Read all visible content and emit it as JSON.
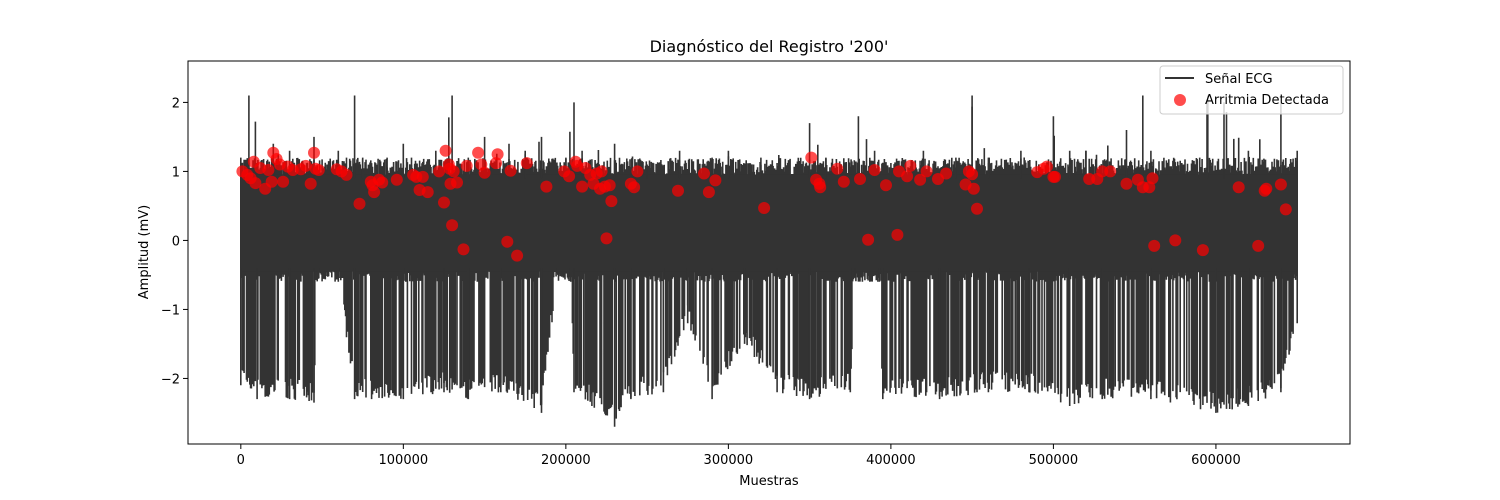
{
  "chart_data": {
    "type": "line",
    "title": "Diagnóstico del Registro '200'",
    "xlabel": "Muestras",
    "ylabel": "Amplitud (mV)",
    "xlim": [
      -32500,
      682500
    ],
    "ylim": [
      -2.95,
      2.6
    ],
    "xticks": [
      0,
      100000,
      200000,
      300000,
      400000,
      500000,
      600000
    ],
    "xtick_labels": [
      "0",
      "100000",
      "200000",
      "300000",
      "400000",
      "500000",
      "600000"
    ],
    "yticks": [
      2,
      1,
      0,
      -1,
      -2
    ],
    "ytick_labels": [
      "2",
      "1",
      "0",
      "−1",
      "−2"
    ],
    "grid": false,
    "legend_position": "upper right",
    "series": [
      {
        "name": "Señal ECG",
        "type": "line",
        "color": "#333333",
        "x_range": [
          0,
          650000
        ],
        "description": "Dense ECG signal; upper envelope mostly ~1.0–1.3 mV with spikes to ~2.4 mV; lower envelope ~-0.5 mV baseline with deep negative deflections to about -2.3 mV, minimum ~-2.7 mV near 230000",
        "upper_envelope": [
          [
            0,
            1.2
          ],
          [
            5000,
            2.1
          ],
          [
            20000,
            1.4
          ],
          [
            30000,
            1.3
          ],
          [
            45000,
            1.5
          ],
          [
            60000,
            1.3
          ],
          [
            70000,
            2.1
          ],
          [
            75000,
            1.2
          ],
          [
            90000,
            1.2
          ],
          [
            100000,
            1.4
          ],
          [
            105000,
            1.2
          ],
          [
            120000,
            1.3
          ],
          [
            130000,
            2.1
          ],
          [
            140000,
            1.2
          ],
          [
            150000,
            1.5
          ],
          [
            165000,
            1.4
          ],
          [
            175000,
            1.3
          ],
          [
            185000,
            1.5
          ],
          [
            200000,
            1.2
          ],
          [
            205000,
            2.0
          ],
          [
            210000,
            1.3
          ],
          [
            230000,
            1.4
          ],
          [
            250000,
            1.1
          ],
          [
            270000,
            1.3
          ],
          [
            290000,
            1.2
          ],
          [
            300000,
            1.3
          ],
          [
            320000,
            1.2
          ],
          [
            350000,
            1.7
          ],
          [
            360000,
            1.2
          ],
          [
            380000,
            1.8
          ],
          [
            390000,
            1.3
          ],
          [
            400000,
            1.0
          ],
          [
            420000,
            1.3
          ],
          [
            440000,
            1.2
          ],
          [
            450000,
            2.1
          ],
          [
            460000,
            1.2
          ],
          [
            480000,
            1.3
          ],
          [
            500000,
            1.8
          ],
          [
            510000,
            1.3
          ],
          [
            520000,
            1.3
          ],
          [
            545000,
            1.6
          ],
          [
            555000,
            2.1
          ],
          [
            560000,
            1.3
          ],
          [
            590000,
            1.2
          ],
          [
            595000,
            2.1
          ],
          [
            605000,
            2.0
          ],
          [
            620000,
            1.3
          ],
          [
            640000,
            2.0
          ],
          [
            650000,
            1.3
          ]
        ],
        "lower_envelope": [
          [
            0,
            -2.1
          ],
          [
            10000,
            -2.3
          ],
          [
            30000,
            -2.3
          ],
          [
            45000,
            -2.35
          ],
          [
            48000,
            -0.55
          ],
          [
            60000,
            -0.6
          ],
          [
            70000,
            -2.3
          ],
          [
            100000,
            -2.3
          ],
          [
            125000,
            -2.2
          ],
          [
            140000,
            -2.3
          ],
          [
            160000,
            -2.2
          ],
          [
            185000,
            -2.5
          ],
          [
            195000,
            -0.5
          ],
          [
            203000,
            -0.6
          ],
          [
            205000,
            -2.2
          ],
          [
            230000,
            -2.7
          ],
          [
            240000,
            -2.3
          ],
          [
            260000,
            -2.2
          ],
          [
            275000,
            -1.2
          ],
          [
            290000,
            -2.3
          ],
          [
            310000,
            -1.5
          ],
          [
            330000,
            -2.2
          ],
          [
            350000,
            -2.3
          ],
          [
            375000,
            -2.2
          ],
          [
            378000,
            -0.5
          ],
          [
            393000,
            -0.6
          ],
          [
            395000,
            -2.3
          ],
          [
            430000,
            -2.3
          ],
          [
            460000,
            -2.2
          ],
          [
            485000,
            -2.2
          ],
          [
            510000,
            -2.4
          ],
          [
            530000,
            -2.3
          ],
          [
            560000,
            -2.3
          ],
          [
            600000,
            -2.5
          ],
          [
            620000,
            -2.4
          ],
          [
            640000,
            -2.2
          ],
          [
            650000,
            -1.2
          ]
        ]
      },
      {
        "name": "Arritmia Detectada",
        "type": "scatter",
        "color": "#ff0000",
        "alpha": 0.7,
        "points": [
          [
            1000,
            1.0
          ],
          [
            4000,
            0.95
          ],
          [
            6000,
            0.9
          ],
          [
            8000,
            1.14
          ],
          [
            9000,
            0.83
          ],
          [
            12000,
            1.05
          ],
          [
            15000,
            0.75
          ],
          [
            17000,
            1.02
          ],
          [
            19000,
            0.85
          ],
          [
            20000,
            1.27
          ],
          [
            22000,
            1.18
          ],
          [
            24000,
            1.1
          ],
          [
            26000,
            0.85
          ],
          [
            29000,
            1.07
          ],
          [
            32000,
            1.02
          ],
          [
            37000,
            1.03
          ],
          [
            40000,
            1.08
          ],
          [
            43000,
            0.82
          ],
          [
            45000,
            1.27
          ],
          [
            46000,
            1.04
          ],
          [
            48000,
            1.02
          ],
          [
            59000,
            1.03
          ],
          [
            62000,
            1.0
          ],
          [
            65000,
            0.95
          ],
          [
            73000,
            0.53
          ],
          [
            80000,
            0.85
          ],
          [
            81000,
            0.8
          ],
          [
            82000,
            0.7
          ],
          [
            85000,
            0.88
          ],
          [
            87000,
            0.84
          ],
          [
            96000,
            0.88
          ],
          [
            106000,
            0.95
          ],
          [
            108000,
            0.92
          ],
          [
            110000,
            0.73
          ],
          [
            112000,
            0.92
          ],
          [
            115000,
            0.7
          ],
          [
            122000,
            1.0
          ],
          [
            125000,
            0.55
          ],
          [
            126000,
            1.3
          ],
          [
            128000,
            1.1
          ],
          [
            128500,
            1.04
          ],
          [
            129000,
            0.82
          ],
          [
            130000,
            0.22
          ],
          [
            131000,
            1.0
          ],
          [
            133000,
            0.84
          ],
          [
            137000,
            -0.13
          ],
          [
            139000,
            1.08
          ],
          [
            146000,
            1.27
          ],
          [
            148000,
            1.1
          ],
          [
            150000,
            0.98
          ],
          [
            157000,
            1.12
          ],
          [
            158000,
            1.25
          ],
          [
            164000,
            -0.02
          ],
          [
            166000,
            1.01
          ],
          [
            170000,
            -0.22
          ],
          [
            176000,
            1.12
          ],
          [
            188000,
            0.78
          ],
          [
            199000,
            1.0
          ],
          [
            202000,
            0.93
          ],
          [
            206000,
            1.14
          ],
          [
            207000,
            1.08
          ],
          [
            210000,
            0.78
          ],
          [
            212000,
            1.05
          ],
          [
            215000,
            0.95
          ],
          [
            217000,
            0.82
          ],
          [
            219000,
            0.97
          ],
          [
            221000,
            0.75
          ],
          [
            222000,
            1.0
          ],
          [
            224000,
            0.78
          ],
          [
            225000,
            0.03
          ],
          [
            227000,
            0.8
          ],
          [
            228000,
            0.57
          ],
          [
            240000,
            0.82
          ],
          [
            242000,
            0.77
          ],
          [
            244000,
            1.0
          ],
          [
            269000,
            0.72
          ],
          [
            285000,
            0.97
          ],
          [
            288000,
            0.7
          ],
          [
            292000,
            0.87
          ],
          [
            322000,
            0.47
          ],
          [
            351000,
            1.2
          ],
          [
            354000,
            0.88
          ],
          [
            356000,
            0.82
          ],
          [
            356500,
            0.77
          ],
          [
            367000,
            1.04
          ],
          [
            371000,
            0.85
          ],
          [
            381000,
            0.89
          ],
          [
            386000,
            0.01
          ],
          [
            390000,
            1.02
          ],
          [
            397000,
            0.8
          ],
          [
            404000,
            0.08
          ],
          [
            405000,
            1.0
          ],
          [
            410000,
            0.93
          ],
          [
            412000,
            1.08
          ],
          [
            418000,
            0.88
          ],
          [
            422000,
            1.0
          ],
          [
            429000,
            0.89
          ],
          [
            434000,
            0.97
          ],
          [
            446000,
            0.81
          ],
          [
            448000,
            1.0
          ],
          [
            450000,
            0.96
          ],
          [
            451000,
            0.75
          ],
          [
            453000,
            0.46
          ],
          [
            490000,
            0.99
          ],
          [
            494000,
            1.04
          ],
          [
            496000,
            1.07
          ],
          [
            500000,
            0.92
          ],
          [
            501000,
            0.92
          ],
          [
            522000,
            0.89
          ],
          [
            527000,
            0.89
          ],
          [
            530000,
            1.0
          ],
          [
            535000,
            1.0
          ],
          [
            545000,
            0.82
          ],
          [
            552000,
            0.88
          ],
          [
            555000,
            0.77
          ],
          [
            559000,
            0.77
          ],
          [
            561000,
            0.9
          ],
          [
            562000,
            -0.08
          ],
          [
            575000,
            0.0
          ],
          [
            592000,
            -0.14
          ],
          [
            614000,
            0.77
          ],
          [
            626000,
            -0.08
          ],
          [
            630000,
            0.72
          ],
          [
            631000,
            0.75
          ],
          [
            640000,
            0.81
          ],
          [
            643000,
            0.45
          ]
        ]
      }
    ]
  },
  "legend": {
    "items": [
      {
        "label": "Señal ECG",
        "marker": "line",
        "color": "#333333"
      },
      {
        "label": "Arritmia Detectada",
        "marker": "circle",
        "color": "#ff0000"
      }
    ]
  }
}
